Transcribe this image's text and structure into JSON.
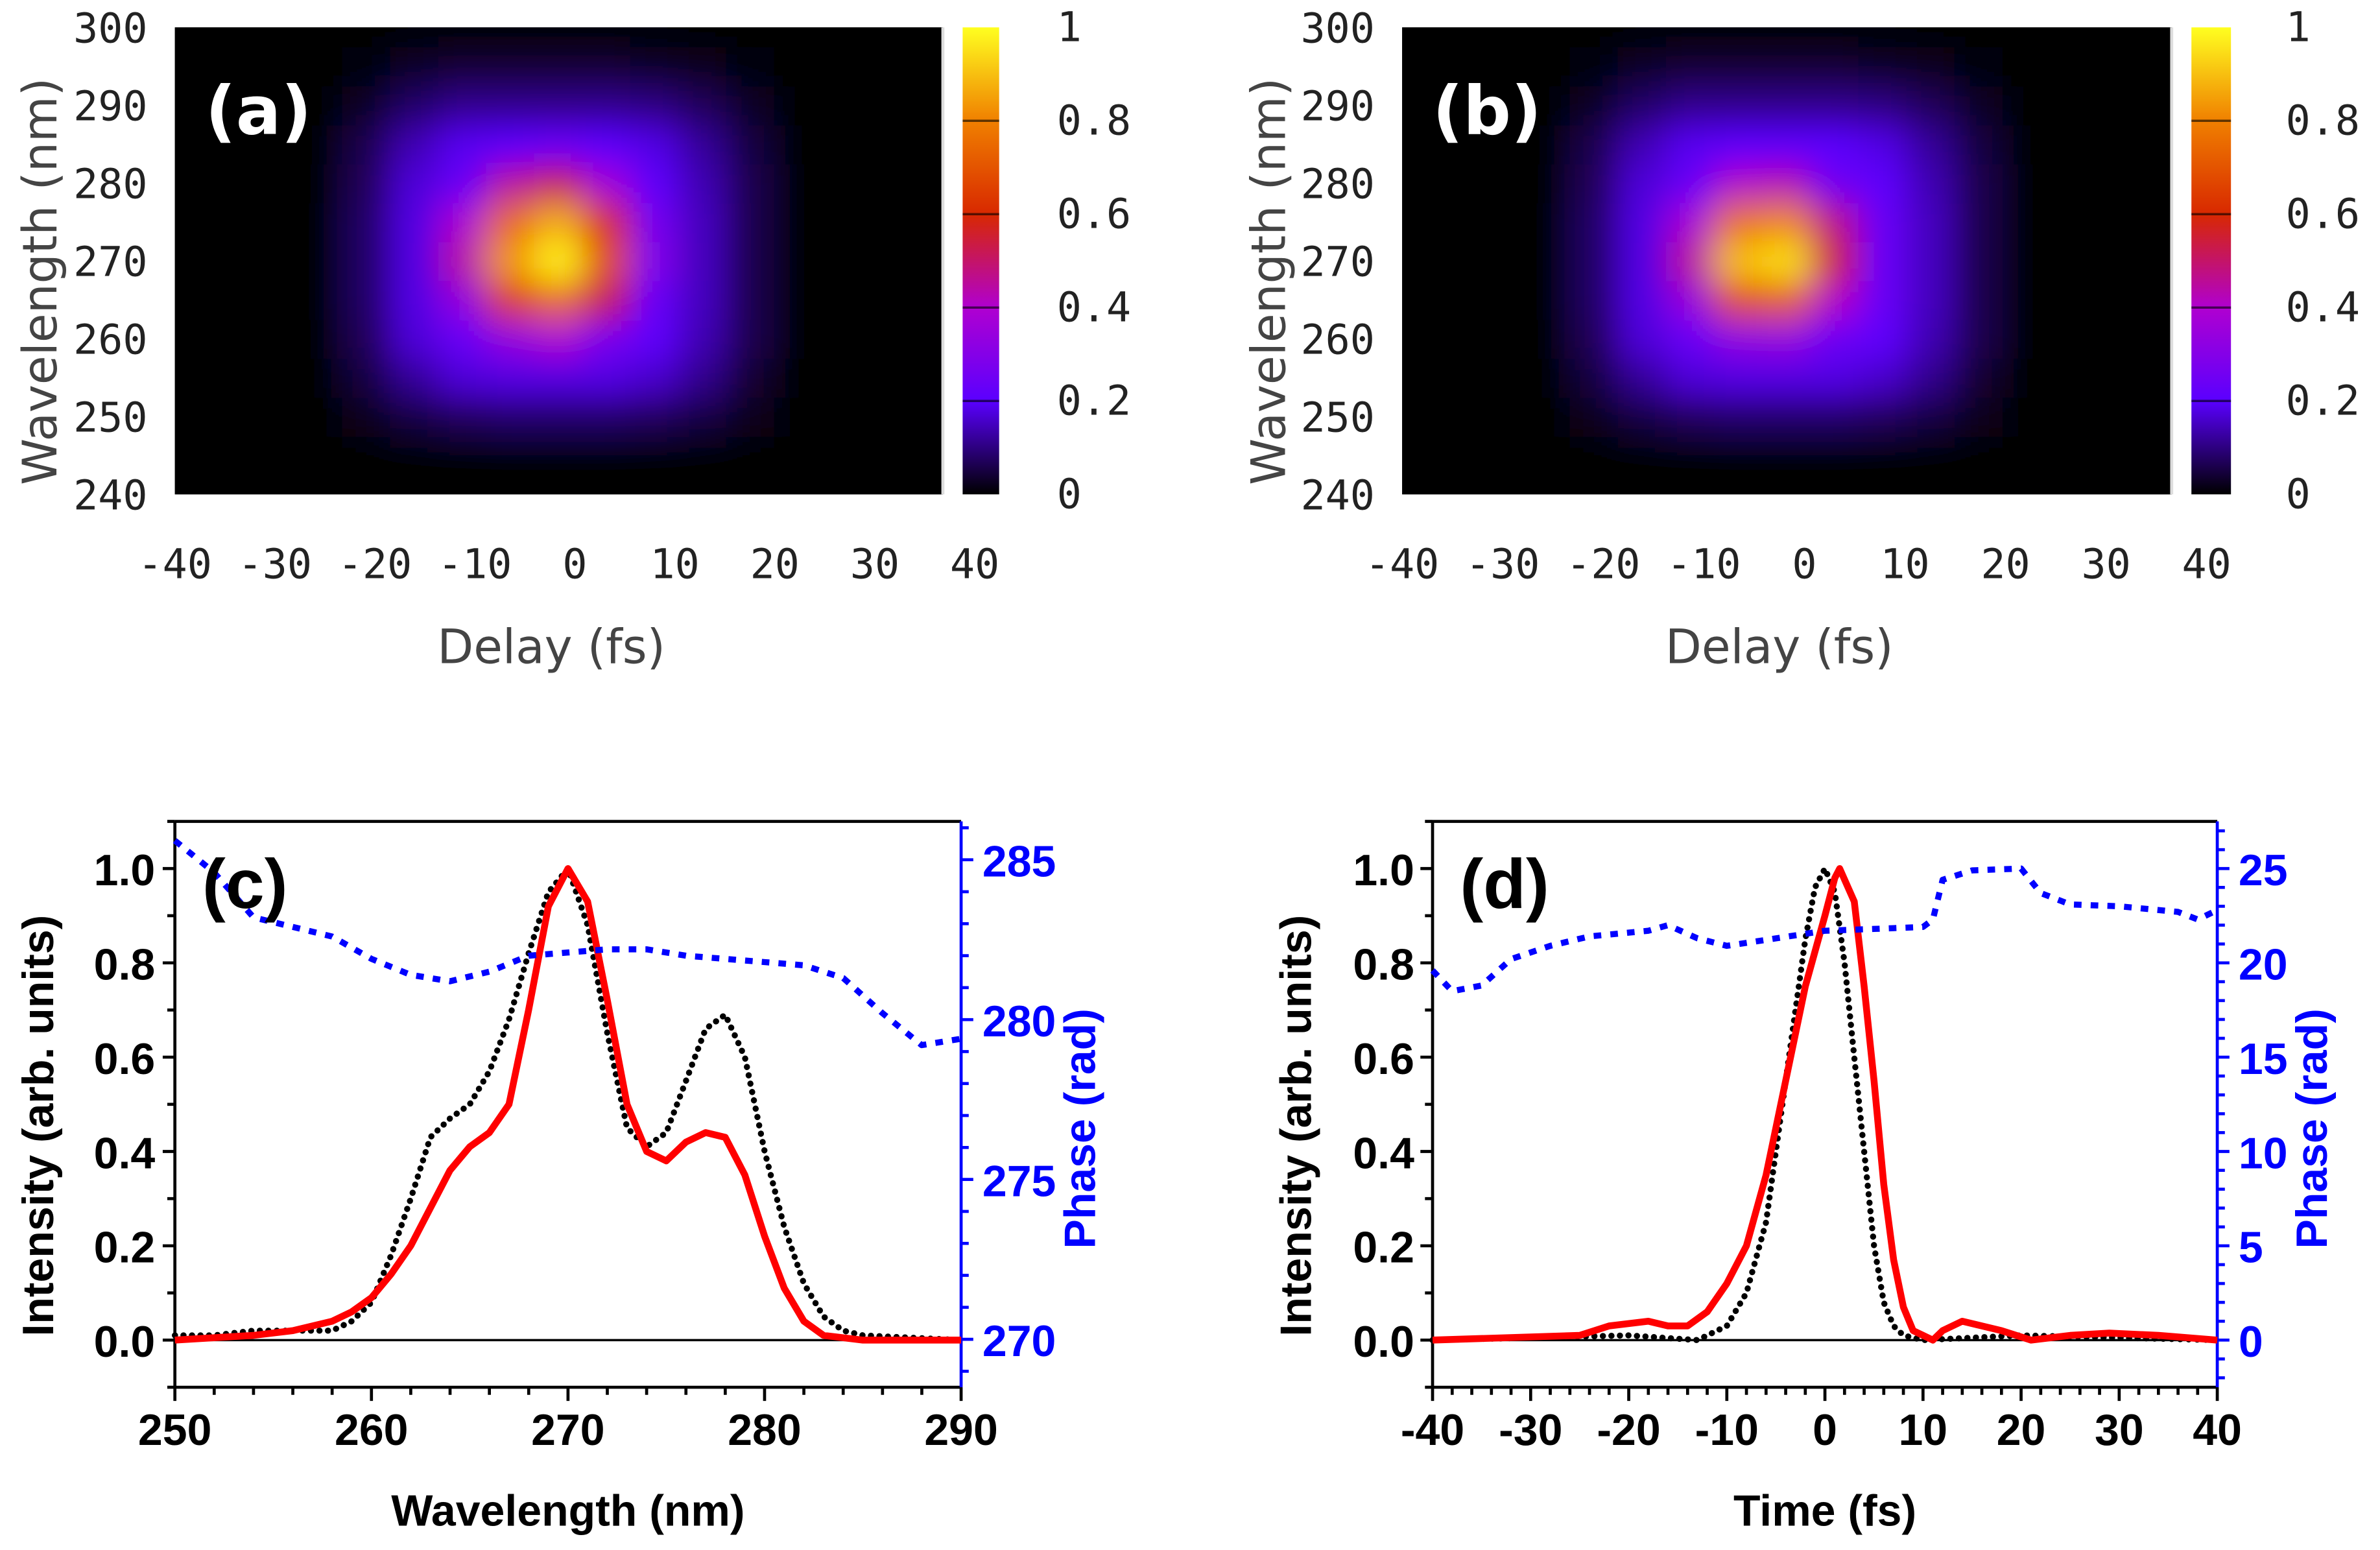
{
  "chart_data": [
    {
      "type": "heatmap",
      "panel_label": "(a)",
      "xlabel": "Delay (fs)",
      "ylabel": "Wavelength (nm)",
      "xlim": [
        -40,
        40
      ],
      "ylim": [
        240,
        300
      ],
      "xticks": [
        "-40",
        "-30",
        "-20",
        "-10",
        "0",
        "10",
        "20",
        "30",
        "40"
      ],
      "yticks": [
        "240",
        "250",
        "260",
        "270",
        "280",
        "290",
        "300"
      ],
      "colorbar": {
        "range": [
          0,
          1
        ],
        "ticks": [
          "0",
          "0.2",
          "0.4",
          "0.6",
          "0.8",
          "1"
        ]
      },
      "colormap": [
        "#000000",
        "#5a00ff",
        "#b000d0",
        "#d82800",
        "#f08000",
        "#ffff20"
      ],
      "x": [
        -40,
        -35,
        -30,
        -25,
        -20,
        -15,
        -10,
        -5,
        0,
        5,
        10,
        15,
        20,
        25,
        30,
        35,
        40
      ],
      "y": [
        240,
        245,
        250,
        255,
        260,
        265,
        270,
        275,
        280,
        285,
        290,
        295,
        300
      ],
      "z": [
        [
          0,
          0,
          0,
          0,
          0,
          0,
          0,
          0,
          0,
          0,
          0,
          0,
          0,
          0,
          0,
          0,
          0
        ],
        [
          0,
          0,
          0,
          0,
          0,
          0,
          0,
          0,
          0,
          0,
          0,
          0,
          0,
          0,
          0,
          0,
          0
        ],
        [
          0,
          0,
          0,
          0,
          0.02,
          0.05,
          0.07,
          0.08,
          0.08,
          0.08,
          0.07,
          0.05,
          0.02,
          0,
          0,
          0,
          0
        ],
        [
          0,
          0,
          0,
          0,
          0.05,
          0.12,
          0.17,
          0.18,
          0.18,
          0.18,
          0.16,
          0.11,
          0.04,
          0,
          0,
          0,
          0
        ],
        [
          0,
          0,
          0,
          0,
          0.07,
          0.17,
          0.23,
          0.33,
          0.39,
          0.27,
          0.21,
          0.14,
          0.06,
          0,
          0,
          0,
          0
        ],
        [
          0,
          0,
          0,
          0,
          0.08,
          0.18,
          0.33,
          0.64,
          0.74,
          0.52,
          0.23,
          0.15,
          0.06,
          0,
          0,
          0,
          0
        ],
        [
          0,
          0,
          0,
          0,
          0.08,
          0.18,
          0.44,
          0.84,
          0.98,
          0.68,
          0.29,
          0.15,
          0.06,
          0,
          0,
          0,
          0
        ],
        [
          0,
          0,
          0,
          0,
          0.08,
          0.18,
          0.39,
          0.75,
          0.87,
          0.61,
          0.26,
          0.15,
          0.06,
          0,
          0,
          0,
          0
        ],
        [
          0,
          0,
          0,
          0,
          0.07,
          0.17,
          0.23,
          0.45,
          0.52,
          0.37,
          0.21,
          0.14,
          0.06,
          0,
          0,
          0,
          0
        ],
        [
          0,
          0,
          0,
          0,
          0.06,
          0.14,
          0.19,
          0.2,
          0.22,
          0.2,
          0.18,
          0.12,
          0.05,
          0,
          0,
          0,
          0
        ],
        [
          0,
          0,
          0,
          0,
          0.03,
          0.08,
          0.11,
          0.11,
          0.11,
          0.11,
          0.1,
          0.07,
          0.03,
          0,
          0,
          0,
          0
        ],
        [
          0,
          0,
          0,
          0,
          0.01,
          0.03,
          0.04,
          0.04,
          0.04,
          0.04,
          0.03,
          0.02,
          0.01,
          0,
          0,
          0,
          0
        ],
        [
          0,
          0,
          0,
          0,
          0,
          0,
          0,
          0,
          0,
          0,
          0,
          0,
          0,
          0,
          0,
          0,
          0
        ]
      ]
    },
    {
      "type": "heatmap",
      "panel_label": "(b)",
      "xlabel": "Delay (fs)",
      "ylabel": "Wavelength (nm)",
      "xlim": [
        -40,
        40
      ],
      "ylim": [
        240,
        300
      ],
      "xticks": [
        "-40",
        "-30",
        "-20",
        "-10",
        "0",
        "10",
        "20",
        "30",
        "40"
      ],
      "yticks": [
        "240",
        "250",
        "260",
        "270",
        "280",
        "290",
        "300"
      ],
      "colorbar": {
        "range": [
          0,
          1
        ],
        "ticks": [
          "0",
          "0.2",
          "0.4",
          "0.6",
          "0.8",
          "1"
        ]
      },
      "colormap": [
        "#000000",
        "#5a00ff",
        "#b000d0",
        "#d82800",
        "#f08000",
        "#ffff20"
      ],
      "x": [
        -40,
        -35,
        -30,
        -25,
        -20,
        -15,
        -10,
        -5,
        0,
        5,
        10,
        15,
        20,
        25,
        30,
        35,
        40
      ],
      "y": [
        240,
        245,
        250,
        255,
        260,
        265,
        270,
        275,
        280,
        285,
        290,
        295,
        300
      ],
      "z": [
        [
          0,
          0,
          0,
          0,
          0,
          0,
          0,
          0,
          0,
          0,
          0,
          0,
          0,
          0,
          0,
          0,
          0
        ],
        [
          0,
          0,
          0,
          0,
          0,
          0,
          0,
          0,
          0,
          0,
          0,
          0,
          0,
          0,
          0,
          0,
          0
        ],
        [
          0,
          0,
          0,
          0,
          0.02,
          0.05,
          0.07,
          0.08,
          0.08,
          0.08,
          0.07,
          0.05,
          0.02,
          0,
          0,
          0,
          0
        ],
        [
          0,
          0,
          0,
          0,
          0.05,
          0.12,
          0.17,
          0.18,
          0.18,
          0.18,
          0.16,
          0.11,
          0.04,
          0,
          0,
          0,
          0
        ],
        [
          0,
          0,
          0,
          0,
          0.07,
          0.17,
          0.23,
          0.32,
          0.33,
          0.24,
          0.21,
          0.14,
          0.06,
          0,
          0,
          0,
          0
        ],
        [
          0,
          0,
          0,
          0,
          0.08,
          0.18,
          0.34,
          0.68,
          0.71,
          0.41,
          0.23,
          0.15,
          0.06,
          0,
          0,
          0,
          0
        ],
        [
          0,
          0,
          0,
          0,
          0.08,
          0.18,
          0.45,
          0.9,
          0.95,
          0.55,
          0.23,
          0.15,
          0.06,
          0,
          0,
          0,
          0
        ],
        [
          0,
          0,
          0,
          0,
          0.08,
          0.18,
          0.38,
          0.77,
          0.81,
          0.47,
          0.23,
          0.15,
          0.06,
          0,
          0,
          0,
          0
        ],
        [
          0,
          0,
          0,
          0,
          0.07,
          0.17,
          0.23,
          0.41,
          0.43,
          0.25,
          0.21,
          0.14,
          0.06,
          0,
          0,
          0,
          0
        ],
        [
          0,
          0,
          0,
          0,
          0.06,
          0.14,
          0.19,
          0.2,
          0.2,
          0.2,
          0.18,
          0.12,
          0.05,
          0,
          0,
          0,
          0
        ],
        [
          0,
          0,
          0,
          0,
          0.03,
          0.08,
          0.11,
          0.11,
          0.11,
          0.11,
          0.1,
          0.07,
          0.03,
          0,
          0,
          0,
          0
        ],
        [
          0,
          0,
          0,
          0,
          0.01,
          0.03,
          0.04,
          0.04,
          0.04,
          0.04,
          0.03,
          0.02,
          0.01,
          0,
          0,
          0,
          0
        ],
        [
          0,
          0,
          0,
          0,
          0,
          0,
          0,
          0,
          0,
          0,
          0,
          0,
          0,
          0,
          0,
          0,
          0
        ]
      ]
    },
    {
      "type": "line",
      "panel_label": "(c)",
      "xlabel": "Wavelength (nm)",
      "ylabel": "Intensity (arb. units)",
      "y2label": "Phase (rad)",
      "xlim": [
        250,
        290
      ],
      "ylim": [
        -0.1,
        1.1
      ],
      "y2lim": [
        268.5,
        286.2
      ],
      "xticks": [
        "250",
        "260",
        "270",
        "280",
        "290"
      ],
      "yticks": [
        "0.0",
        "0.2",
        "0.4",
        "0.6",
        "0.8",
        "1.0"
      ],
      "y2ticks": [
        "270",
        "275",
        "280",
        "285"
      ],
      "grid": false,
      "series": [
        {
          "style": "dotted",
          "color": "#000000",
          "axis": "left",
          "x": [
            250,
            252,
            254,
            256,
            258,
            259,
            260,
            261,
            262,
            263,
            264,
            265,
            266,
            267,
            268,
            269,
            270,
            271,
            272,
            273,
            274,
            275,
            276,
            277,
            278,
            279,
            280,
            281,
            282,
            283,
            284,
            285,
            290
          ],
          "y": [
            0.01,
            0.01,
            0.02,
            0.02,
            0.02,
            0.04,
            0.08,
            0.18,
            0.3,
            0.43,
            0.47,
            0.5,
            0.57,
            0.68,
            0.82,
            0.95,
            1.0,
            0.88,
            0.65,
            0.45,
            0.41,
            0.44,
            0.55,
            0.66,
            0.69,
            0.6,
            0.4,
            0.24,
            0.12,
            0.05,
            0.02,
            0.01,
            0.0
          ]
        },
        {
          "style": "solid",
          "color": "#ff0000",
          "axis": "left",
          "x": [
            250,
            254,
            256,
            258,
            259,
            260,
            261,
            262,
            263,
            264,
            265,
            266,
            267,
            268,
            269,
            270,
            271,
            272,
            273,
            274,
            275,
            276,
            277,
            278,
            279,
            280,
            281,
            282,
            283,
            285,
            290
          ],
          "y": [
            0,
            0.01,
            0.02,
            0.04,
            0.06,
            0.09,
            0.14,
            0.2,
            0.28,
            0.36,
            0.41,
            0.44,
            0.5,
            0.7,
            0.92,
            1.0,
            0.93,
            0.72,
            0.5,
            0.4,
            0.38,
            0.42,
            0.44,
            0.43,
            0.35,
            0.22,
            0.11,
            0.04,
            0.01,
            0,
            0
          ]
        },
        {
          "style": "dotted",
          "color": "#0000ff",
          "axis": "right",
          "x": [
            250,
            252,
            254,
            256,
            258,
            260,
            262,
            264,
            266,
            268,
            270,
            272,
            274,
            276,
            278,
            280,
            282,
            284,
            286,
            288,
            290
          ],
          "y": [
            285.6,
            284.6,
            283.2,
            282.9,
            282.6,
            281.9,
            281.4,
            281.2,
            281.5,
            282.0,
            282.1,
            282.2,
            282.2,
            282.0,
            281.9,
            281.8,
            281.7,
            281.3,
            280.2,
            279.2,
            279.4
          ]
        }
      ]
    },
    {
      "type": "line",
      "panel_label": "(d)",
      "xlabel": "Time (fs)",
      "ylabel": "Intensity (arb. units)",
      "y2label": "Phase (rad)",
      "xlim": [
        -40,
        40
      ],
      "ylim": [
        -0.1,
        1.1
      ],
      "y2lim": [
        -2.5,
        27.5
      ],
      "xticks": [
        "-40",
        "-30",
        "-20",
        "-10",
        "0",
        "10",
        "20",
        "30",
        "40"
      ],
      "yticks": [
        "0.0",
        "0.2",
        "0.4",
        "0.6",
        "0.8",
        "1.0"
      ],
      "y2ticks": [
        "0",
        "5",
        "10",
        "15",
        "20",
        "25"
      ],
      "grid": false,
      "series": [
        {
          "style": "dotted",
          "color": "#000000",
          "axis": "left",
          "x": [
            -40,
            -20,
            -13,
            -10,
            -8,
            -6,
            -4,
            -2,
            -1,
            0,
            1,
            2,
            3,
            4,
            5,
            6,
            7,
            8,
            10,
            20,
            40
          ],
          "y": [
            0,
            0.01,
            0,
            0.03,
            0.1,
            0.25,
            0.55,
            0.85,
            0.96,
            1.0,
            0.95,
            0.8,
            0.6,
            0.4,
            0.2,
            0.08,
            0.03,
            0.01,
            0,
            0.01,
            0
          ]
        },
        {
          "style": "solid",
          "color": "#ff0000",
          "axis": "left",
          "x": [
            -40,
            -25,
            -22,
            -18,
            -16,
            -14,
            -12,
            -10,
            -8,
            -6,
            -4,
            -2,
            0,
            1,
            1.5,
            3,
            4,
            5,
            6,
            7,
            8,
            9,
            10,
            11,
            12,
            14,
            16,
            18,
            21,
            25,
            29,
            34,
            40
          ],
          "y": [
            0,
            0.01,
            0.03,
            0.04,
            0.03,
            0.03,
            0.06,
            0.12,
            0.2,
            0.35,
            0.55,
            0.75,
            0.9,
            0.98,
            1.0,
            0.93,
            0.75,
            0.55,
            0.33,
            0.17,
            0.07,
            0.02,
            0.01,
            0.0,
            0.02,
            0.04,
            0.03,
            0.02,
            0.0,
            0.01,
            0.015,
            0.01,
            0.0
          ]
        },
        {
          "style": "dotted",
          "color": "#0000ff",
          "axis": "right",
          "x": [
            -40,
            -38,
            -35,
            -32,
            -28,
            -24,
            -18,
            -16,
            -13,
            -10,
            -5,
            0,
            5,
            10,
            11,
            12,
            15,
            20,
            22,
            25,
            30,
            36,
            38,
            40
          ],
          "y": [
            19.6,
            18.5,
            18.8,
            20.2,
            20.9,
            21.4,
            21.7,
            22.0,
            21.3,
            20.9,
            21.3,
            21.7,
            21.8,
            21.9,
            22.3,
            24.4,
            24.9,
            25.0,
            23.7,
            23.1,
            23.0,
            22.7,
            22.3,
            22.8
          ]
        }
      ]
    }
  ]
}
